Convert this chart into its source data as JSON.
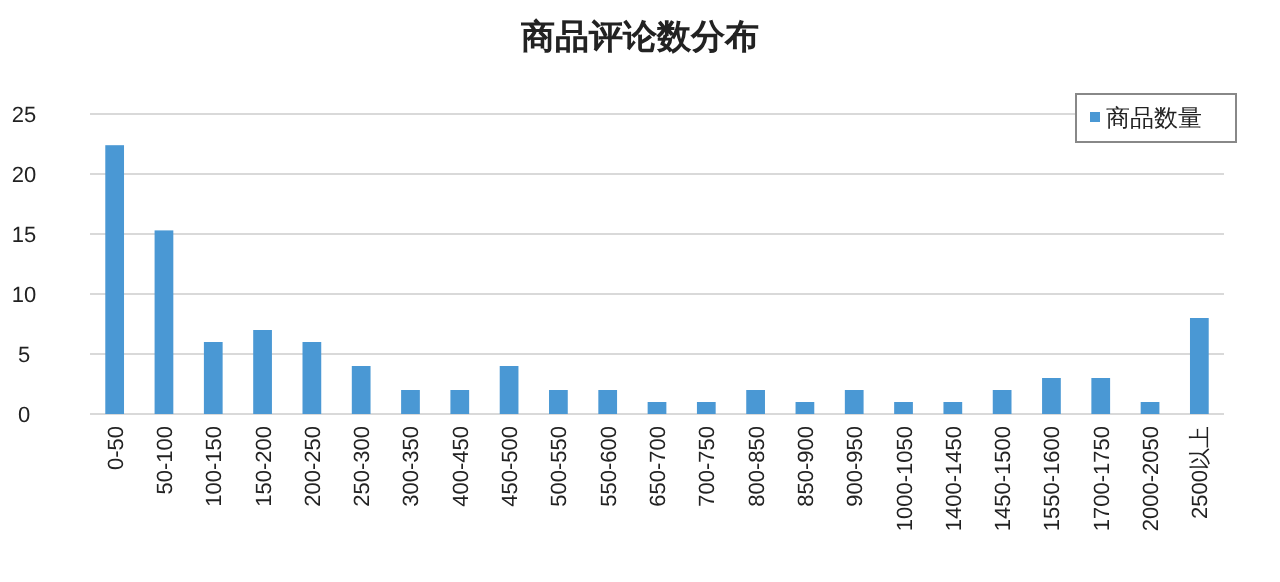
{
  "chart_data": {
    "type": "bar",
    "title": "商品评论数分布",
    "categories": [
      "0-50",
      "50-100",
      "100-150",
      "150-200",
      "200-250",
      "250-300",
      "300-350",
      "400-450",
      "450-500",
      "500-550",
      "550-600",
      "650-700",
      "700-750",
      "800-850",
      "850-900",
      "900-950",
      "1000-1050",
      "1400-1450",
      "1450-1500",
      "1550-1600",
      "1700-1750",
      "2000-2050",
      "2500以上"
    ],
    "series": [
      {
        "name": "商品数量",
        "color": "#4a98d4",
        "values": [
          22.4,
          15.3,
          6,
          7,
          6,
          4,
          2,
          2,
          4,
          2,
          2,
          1,
          1,
          2,
          1,
          2,
          1,
          1,
          2,
          3,
          3,
          1,
          8
        ]
      }
    ],
    "ylim": [
      0,
      25
    ],
    "yticks": [
      0,
      5,
      10,
      15,
      20,
      25
    ],
    "grid": "y",
    "legend": "top right"
  }
}
